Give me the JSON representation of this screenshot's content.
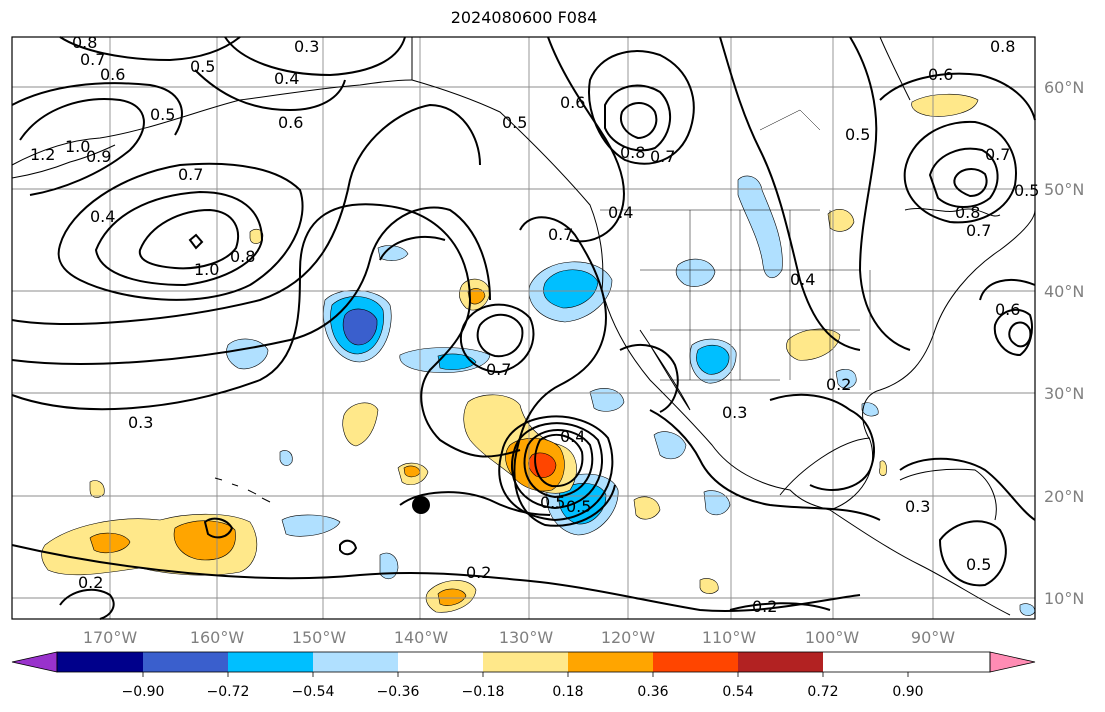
{
  "title": "2024080600 F084",
  "map": {
    "lon_labels": [
      "170°W",
      "160°W",
      "150°W",
      "140°W",
      "130°W",
      "120°W",
      "110°W",
      "100°W",
      "90°W"
    ],
    "lat_labels": [
      "60°N",
      "50°N",
      "40°N",
      "30°N",
      "20°N",
      "10°N"
    ],
    "contour_labels": [
      "0.8",
      "0.7",
      "0.6",
      "0.5",
      "0.3",
      "0.4",
      "0.6",
      "1.2",
      "1.0",
      "0.9",
      "0.5",
      "0.7",
      "0.4",
      "1.0",
      "0.8",
      "0.7",
      "0.5",
      "0.6",
      "0.8",
      "0.7",
      "0.4",
      "0.3",
      "0.7",
      "0.4",
      "0.2",
      "0.3",
      "0.2",
      "0.4",
      "0.5",
      "0.5",
      "0.2",
      "0.2",
      "0.3",
      "0.6",
      "0.8",
      "0.7",
      "0.5",
      "0.7",
      "0.5",
      "0.8",
      "0.6",
      "0.5"
    ],
    "marker": "black-dot"
  },
  "colorbar": {
    "ticks": [
      "−0.90",
      "−0.72",
      "−0.54",
      "−0.36",
      "−0.18",
      "0.18",
      "0.36",
      "0.54",
      "0.72",
      "0.90"
    ],
    "colors": [
      "#9932cc",
      "#00008b",
      "#3a5fcd",
      "#00bfff",
      "#b0e0ff",
      "#ffffff",
      "#ffe88a",
      "#ffa500",
      "#ff4500",
      "#b22222",
      "#ff8cb4"
    ]
  }
}
